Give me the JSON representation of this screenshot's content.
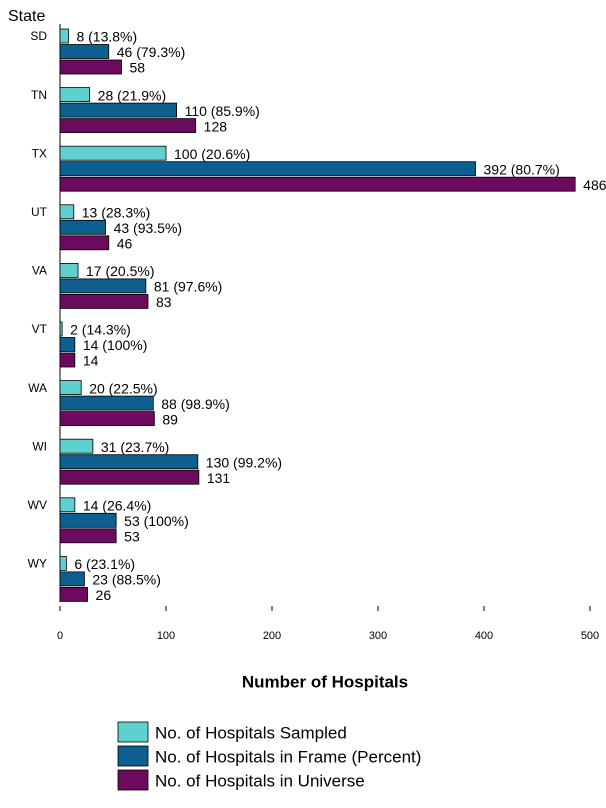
{
  "chart_data": {
    "type": "bar",
    "orientation": "horizontal",
    "y_axis_title": "State",
    "x_axis_title": "Number of Hospitals",
    "categories": [
      "SD",
      "TN",
      "TX",
      "UT",
      "VA",
      "VT",
      "WA",
      "WI",
      "WV",
      "WY"
    ],
    "series": [
      {
        "name": "No. of Hospitals Sampled",
        "color": "#5fcfcf",
        "values": [
          8,
          28,
          100,
          13,
          17,
          2,
          20,
          31,
          14,
          6
        ],
        "value_labels": [
          "8  (13.8%)",
          "28  (21.9%)",
          "100  (20.6%)",
          "13  (28.3%)",
          "17  (20.5%)",
          "2  (14.3%)",
          "20  (22.5%)",
          "31  (23.7%)",
          "14  (26.4%)",
          "6  (23.1%)"
        ]
      },
      {
        "name": "No. of Hospitals in Frame (Percent)",
        "color": "#0c5f8f",
        "values": [
          46,
          110,
          392,
          43,
          81,
          14,
          88,
          130,
          53,
          23
        ],
        "value_labels": [
          "46  (79.3%)",
          "110  (85.9%)",
          "392  (80.7%)",
          "43  (93.5%)",
          "81  (97.6%)",
          "14  (100%)",
          "88  (98.9%)",
          "130  (99.2%)",
          "53  (100%)",
          "23  (88.5%)"
        ]
      },
      {
        "name": "No. of Hospitals in Universe",
        "color": "#6b0a5e",
        "values": [
          58,
          128,
          486,
          46,
          83,
          14,
          89,
          131,
          53,
          26
        ]
      }
    ],
    "xlim": [
      0,
      500
    ],
    "xticks": [
      0,
      100,
      200,
      300,
      400,
      500
    ]
  }
}
